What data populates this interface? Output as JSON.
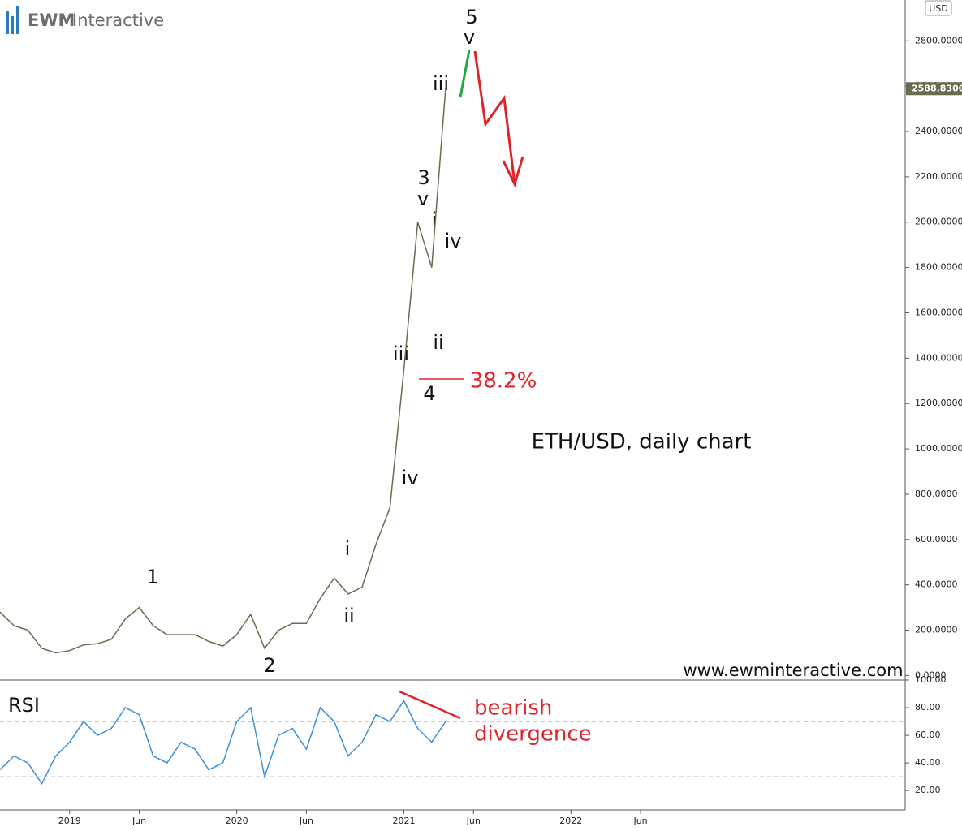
{
  "chart_data": [
    {
      "type": "line",
      "title": "ETH/USD, daily chart",
      "logo": {
        "brand": "EWM",
        "name": "Interactive"
      },
      "currency": "USD",
      "x": [
        "2018-08",
        "2018-09",
        "2018-10",
        "2018-11",
        "2018-12",
        "2019-01",
        "2019-02",
        "2019-03",
        "2019-04",
        "2019-05",
        "2019-06",
        "2019-07",
        "2019-08",
        "2019-09",
        "2019-10",
        "2019-11",
        "2019-12",
        "2020-01",
        "2020-02",
        "2020-03",
        "2020-04",
        "2020-05",
        "2020-06",
        "2020-07",
        "2020-08",
        "2020-09",
        "2020-10",
        "2020-11",
        "2020-12",
        "2021-01",
        "2021-02",
        "2021-03",
        "2021-04"
      ],
      "series": [
        {
          "name": "ETH/USD",
          "color": "#6b6b4f",
          "values": [
            280,
            220,
            200,
            120,
            100,
            110,
            135,
            140,
            160,
            250,
            300,
            220,
            180,
            180,
            180,
            150,
            130,
            180,
            270,
            120,
            200,
            230,
            230,
            340,
            430,
            360,
            390,
            580,
            740,
            1350,
            2000,
            1800,
            2588.83
          ]
        }
      ],
      "price_marker": {
        "value": 2588.83,
        "label": "2588.8300"
      },
      "xlim": [
        "2018-08",
        "2024-01"
      ],
      "xticks": [
        {
          "value": "2019-01",
          "label": "2019"
        },
        {
          "value": "2019-06",
          "label": "Jun"
        },
        {
          "value": "2020-01",
          "label": "2020"
        },
        {
          "value": "2020-06",
          "label": "Jun"
        },
        {
          "value": "2021-01",
          "label": "2021"
        },
        {
          "value": "2021-06",
          "label": "Jun"
        },
        {
          "value": "2022-01",
          "label": "2022"
        },
        {
          "value": "2022-06",
          "label": "Jun"
        }
      ],
      "ylim": [
        -20,
        2980
      ],
      "yticks": [
        {
          "value": 0,
          "label": "0.0000"
        },
        {
          "value": 200,
          "label": "200.0000"
        },
        {
          "value": 400,
          "label": "400.0000"
        },
        {
          "value": 600,
          "label": "600.0000"
        },
        {
          "value": 800,
          "label": "800.0000"
        },
        {
          "value": 1000,
          "label": "1000.0000"
        },
        {
          "value": 1200,
          "label": "1200.0000"
        },
        {
          "value": 1400,
          "label": "1400.0000"
        },
        {
          "value": 1600,
          "label": "1600.0000"
        },
        {
          "value": 1800,
          "label": "1800.0000"
        },
        {
          "value": 2000,
          "label": "2000.0000"
        },
        {
          "value": 2200,
          "label": "2200.0000"
        },
        {
          "value": 2400,
          "label": "2400.0000"
        },
        {
          "value": 2600,
          "label": "2600.0000"
        },
        {
          "value": 2800,
          "label": "2800.0000"
        }
      ],
      "annotations": [
        "5",
        "v",
        "iii",
        "3",
        "v",
        "i",
        "iv",
        "iii",
        "ii",
        "4",
        "38.2%",
        "iv",
        "i",
        "ii",
        "1",
        "2",
        "www.ewminteractive.com"
      ]
    },
    {
      "type": "line",
      "title": "RSI",
      "x": [
        "2018-08",
        "2018-09",
        "2018-10",
        "2018-11",
        "2018-12",
        "2019-01",
        "2019-02",
        "2019-03",
        "2019-04",
        "2019-05",
        "2019-06",
        "2019-07",
        "2019-08",
        "2019-09",
        "2019-10",
        "2019-11",
        "2019-12",
        "2020-01",
        "2020-02",
        "2020-03",
        "2020-04",
        "2020-05",
        "2020-06",
        "2020-07",
        "2020-08",
        "2020-09",
        "2020-10",
        "2020-11",
        "2020-12",
        "2021-01",
        "2021-02",
        "2021-03",
        "2021-04"
      ],
      "series": [
        {
          "name": "RSI",
          "color": "#3d8fd8",
          "values": [
            35,
            45,
            40,
            25,
            45,
            55,
            70,
            60,
            65,
            80,
            75,
            45,
            40,
            55,
            50,
            35,
            40,
            70,
            80,
            30,
            60,
            65,
            50,
            80,
            70,
            45,
            55,
            75,
            70,
            85,
            65,
            55,
            70
          ]
        }
      ],
      "levels": [
        70,
        30
      ],
      "ylim": [
        6,
        100
      ],
      "yticks": [
        {
          "value": 20,
          "label": "20.00"
        },
        {
          "value": 40,
          "label": "40.00"
        },
        {
          "value": 60,
          "label": "60.00"
        },
        {
          "value": 80,
          "label": "80.00"
        },
        {
          "value": 100,
          "label": "100.00"
        }
      ],
      "annotations": [
        "bearish",
        "divergence"
      ]
    }
  ]
}
